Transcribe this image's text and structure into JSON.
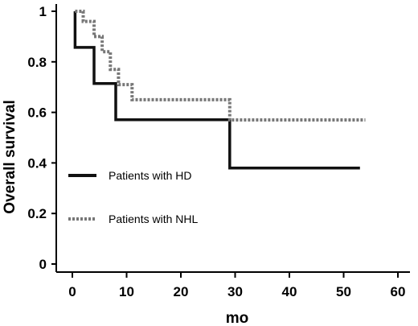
{
  "chart_data": {
    "type": "line",
    "title": "",
    "xlabel": "mo",
    "ylabel": "Overall survival",
    "xlim": [
      0,
      60
    ],
    "ylim": [
      0,
      1
    ],
    "x_ticks": [
      0,
      10,
      20,
      30,
      40,
      50,
      60
    ],
    "y_ticks": [
      0,
      0.2,
      0.4,
      0.6,
      0.8,
      1
    ],
    "y_tick_labels": [
      "0",
      "0.2",
      "0.4",
      "0.6",
      "0.8",
      "1"
    ],
    "grid": false,
    "legend_position": "left-middle",
    "series": [
      {
        "name": "Patients with HD",
        "style": "solid",
        "color": "#111111",
        "x": [
          0.5,
          0.5,
          4,
          4,
          8,
          8,
          29,
          29,
          53
        ],
        "y": [
          1.0,
          0.857,
          0.857,
          0.714,
          0.714,
          0.571,
          0.571,
          0.38,
          0.38
        ]
      },
      {
        "name": "Patients with NHL",
        "style": "dotted",
        "color": "#777777",
        "x": [
          0.5,
          2,
          2,
          4,
          4,
          5.5,
          5.5,
          7,
          7,
          8.5,
          8.5,
          11,
          11,
          29,
          29,
          54
        ],
        "y": [
          1.0,
          1.0,
          0.96,
          0.96,
          0.9,
          0.9,
          0.84,
          0.84,
          0.77,
          0.77,
          0.71,
          0.71,
          0.65,
          0.65,
          0.57,
          0.57
        ]
      }
    ]
  }
}
